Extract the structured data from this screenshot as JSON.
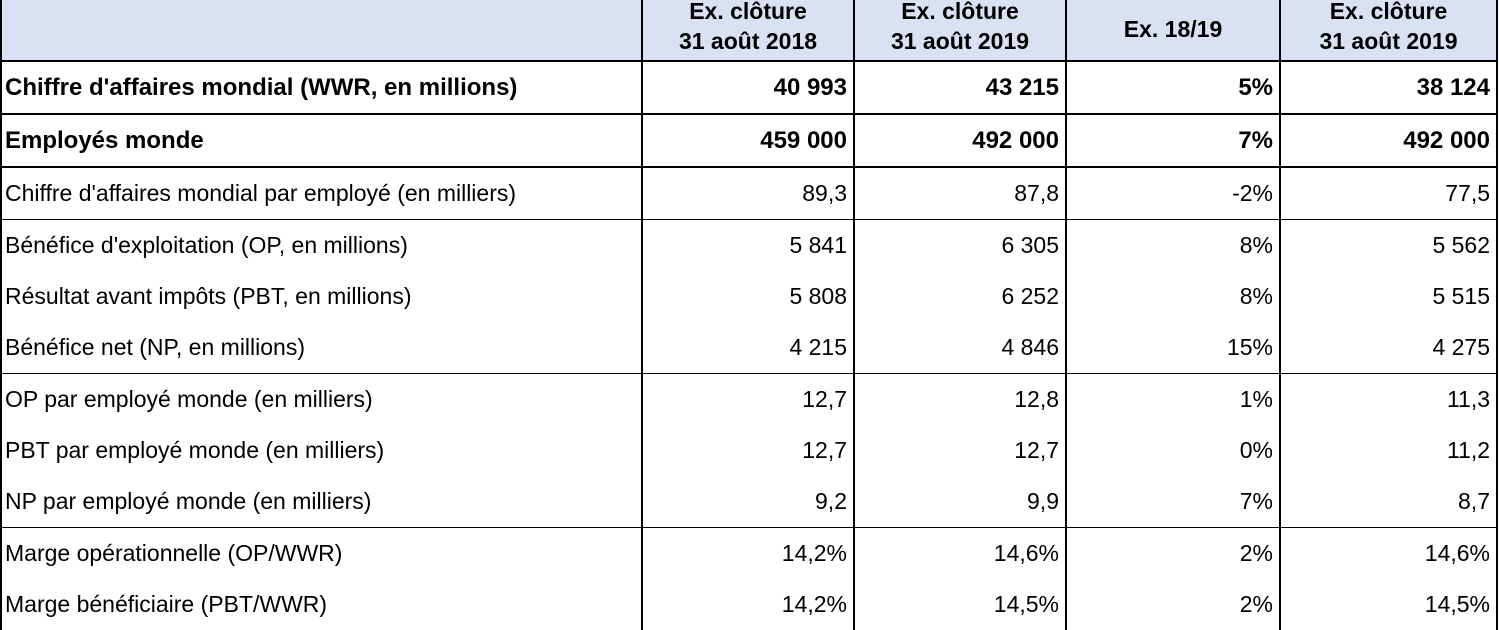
{
  "table": {
    "columns": [
      {
        "line1": "Ex. clôture",
        "line2": "31 août 2018"
      },
      {
        "line1": "Ex. clôture",
        "line2": "31 août 2019"
      },
      {
        "line1": "Ex. 18/19",
        "line2": ""
      },
      {
        "line1": "Ex. clôture",
        "line2": "31 août 2019"
      }
    ],
    "rows": [
      {
        "label": "Chiffre d'affaires mondial (WWR, en millions)",
        "values": [
          "40 993",
          "43 215",
          "5%",
          "38 124"
        ]
      },
      {
        "label": "Employés monde",
        "values": [
          "459 000",
          "492 000",
          "7%",
          "492 000"
        ]
      },
      {
        "label": "Chiffre d'affaires mondial par employé (en milliers)",
        "values": [
          "89,3",
          "87,8",
          "-2%",
          "77,5"
        ]
      },
      {
        "label": "Bénéfice d'exploitation (OP, en millions)",
        "values": [
          "5 841",
          "6 305",
          "8%",
          "5 562"
        ]
      },
      {
        "label": "Résultat avant impôts (PBT, en millions)",
        "values": [
          "5 808",
          "6 252",
          "8%",
          "5 515"
        ]
      },
      {
        "label": "Bénéfice net (NP, en millions)",
        "values": [
          "4 215",
          "4 846",
          "15%",
          "4 275"
        ]
      },
      {
        "label": "OP par employé monde (en milliers)",
        "values": [
          "12,7",
          "12,8",
          "1%",
          "11,3"
        ]
      },
      {
        "label": "PBT par employé monde (en milliers)",
        "values": [
          "12,7",
          "12,7",
          "0%",
          "11,2"
        ]
      },
      {
        "label": "NP par employé monde (en milliers)",
        "values": [
          "9,2",
          "9,9",
          "7%",
          "8,7"
        ]
      },
      {
        "label": "Marge opérationnelle (OP/WWR)",
        "values": [
          "14,2%",
          "14,6%",
          "2%",
          "14,6%"
        ]
      },
      {
        "label": "Marge bénéficiaire (PBT/WWR)",
        "values": [
          "14,2%",
          "14,5%",
          "2%",
          "14,5%"
        ]
      }
    ]
  }
}
